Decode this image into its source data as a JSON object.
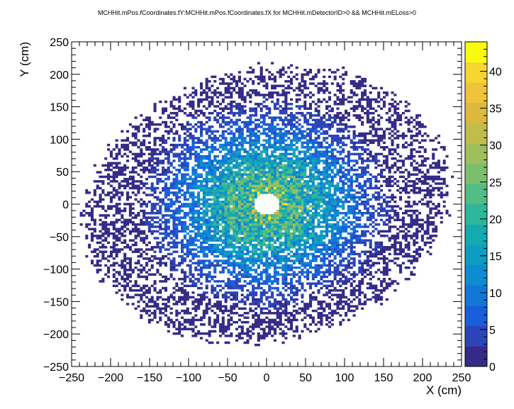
{
  "chart_data": {
    "type": "heatmap",
    "title": "MCHHit.mPos.fCoordinates.fY:MCHHit.mPos.fCoordinates.fX for MCHHit.mDetectorID>0 && MCHHit.mELoss>0",
    "xlabel": "X (cm)",
    "ylabel": "Y (cm)",
    "xlim": [
      -250,
      250
    ],
    "ylim": [
      -250,
      250
    ],
    "x_ticks": [
      "−250",
      "−200",
      "−150",
      "−100",
      "−50",
      "0",
      "50",
      "100",
      "150",
      "200",
      "250"
    ],
    "y_ticks": [
      "−250",
      "−200",
      "−150",
      "−100",
      "−50",
      "0",
      "50",
      "100",
      "150",
      "200",
      "250"
    ],
    "color_scale": {
      "min": 0,
      "max": 44,
      "ticks": [
        "0",
        "5",
        "10",
        "15",
        "20",
        "25",
        "30",
        "35",
        "40"
      ],
      "palette": [
        "#352a87",
        "#2b45b8",
        "#1a5fd9",
        "#1276d6",
        "#0f8bd0",
        "#0f9cc2",
        "#13aab0",
        "#2db69a",
        "#52bc84",
        "#7bbf6e",
        "#9fbf5d",
        "#c1bc4c",
        "#dcb93e",
        "#f0c33a",
        "#f7d72f",
        "#f9fb0e"
      ]
    },
    "distribution": {
      "shape": "annular",
      "hole_radius_cm": 17,
      "outer_radius_cm": 245,
      "peak_near_radius_cm": 22,
      "peak_count": 44
    }
  }
}
